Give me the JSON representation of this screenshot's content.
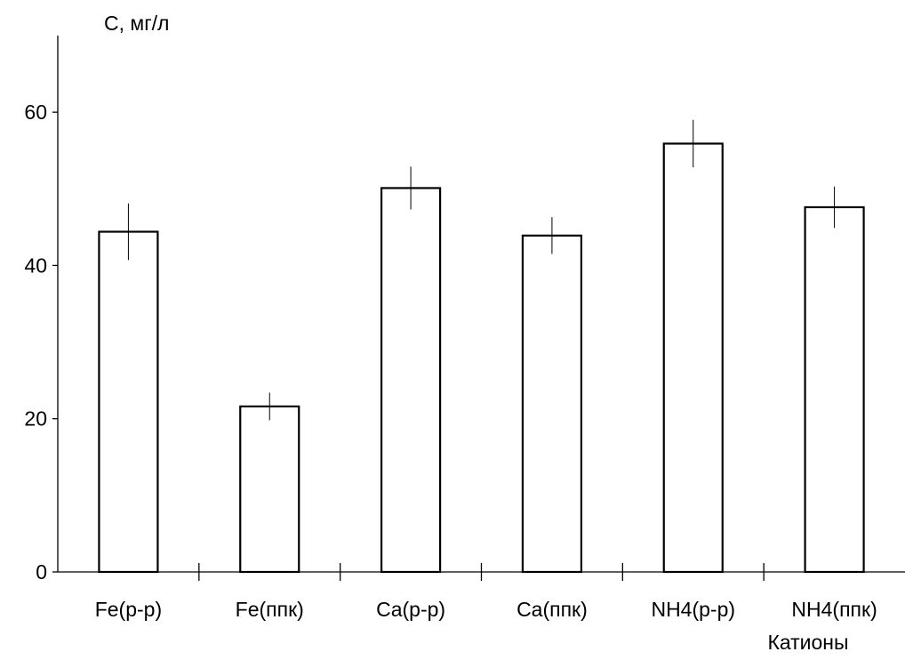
{
  "chart_data": {
    "type": "bar",
    "title": "",
    "xlabel": "Катионы",
    "ylabel": "С, мг/л",
    "categories": [
      "Fe(р-р)",
      "Fe(ппк)",
      "Ca(р-р)",
      "Ca(ппк)",
      "NH4(р-р)",
      "NH4(ппк)"
    ],
    "series": [
      {
        "values": [
          44.4,
          21.6,
          50.1,
          43.9,
          55.9,
          47.6
        ],
        "error": [
          3.7,
          1.8,
          2.8,
          2.4,
          3.1,
          2.7
        ]
      }
    ],
    "ylim": [
      0,
      70
    ],
    "yticks": [
      "0",
      "20",
      "40",
      "60"
    ],
    "grid": false,
    "legend": "none",
    "colors": {
      "bar_fill": "#ffffff",
      "bar_stroke": "#000000",
      "axis": "#000000"
    }
  }
}
